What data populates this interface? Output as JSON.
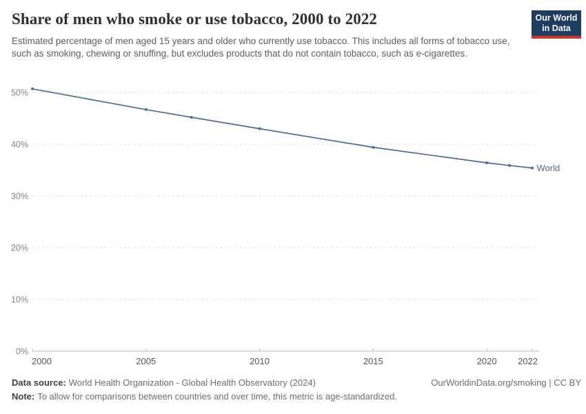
{
  "header": {
    "title": "Share of men who smoke or use tobacco, 2000 to 2022",
    "subtitle": "Estimated percentage of men aged 15 years and older who currently use tobacco. This includes all forms of tobacco use, such as smoking, chewing or snuffing, but excludes products that do not contain tobacco, such as e-cigarettes.",
    "logo": {
      "line1": "Our World",
      "line2": "in Data",
      "bg_color": "#1d3d63",
      "accent_color": "#d0362c"
    }
  },
  "chart_data": {
    "type": "line",
    "title": "Share of men who smoke or use tobacco, 2000 to 2022",
    "x": [
      2000,
      2005,
      2007,
      2010,
      2015,
      2020,
      2021,
      2022
    ],
    "series": [
      {
        "name": "World",
        "color": "#4c6a9c",
        "values": [
          50.7,
          46.7,
          45.2,
          43.0,
          39.4,
          36.4,
          35.9,
          35.4
        ]
      }
    ],
    "xlabel": "",
    "ylabel": "",
    "xlim": [
      2000,
      2022
    ],
    "ylim": [
      0,
      52
    ],
    "x_ticks": [
      2000,
      2005,
      2010,
      2015,
      2020,
      2022
    ],
    "y_ticks": [
      0,
      10,
      20,
      30,
      40,
      50
    ],
    "y_tick_suffix": "%",
    "grid": "horizontal-dashed",
    "legend": "line-end-label"
  },
  "footer": {
    "datasource_label": "Data source:",
    "datasource_text": "World Health Organization - Global Health Observatory (2024)",
    "note_label": "Note:",
    "note_text": "To allow for comparisons between countries and over time, this metric is age-standardized.",
    "credit": "OurWorldinData.org/smoking | CC BY"
  }
}
